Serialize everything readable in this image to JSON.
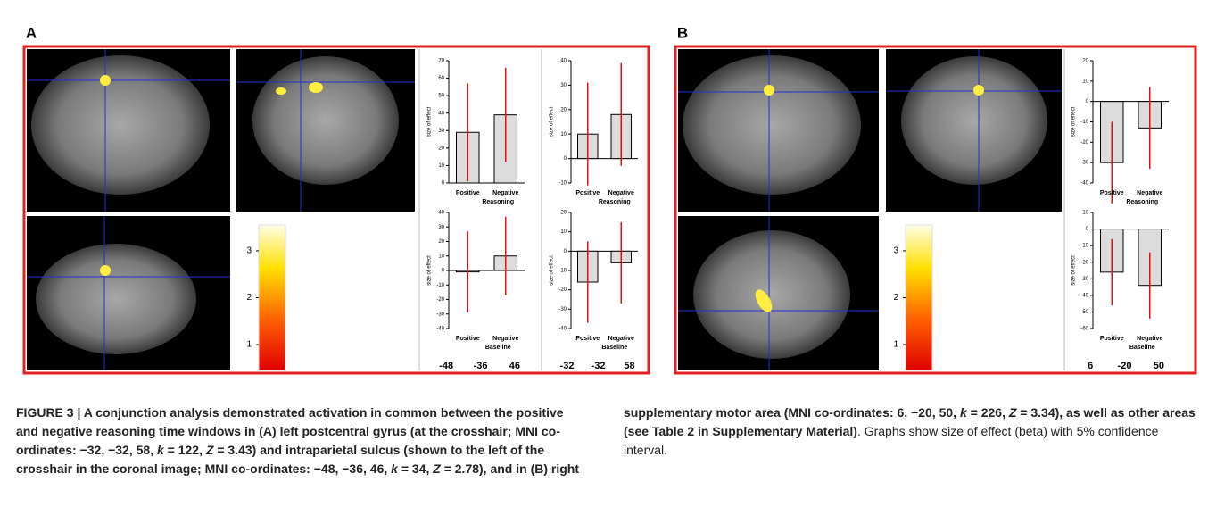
{
  "panels": [
    {
      "label": "A",
      "colorbar": {
        "range": [
          0.45,
          3.55
        ],
        "ticks": [
          1,
          2,
          3
        ]
      },
      "chart_columns": [
        {
          "charts": [
            {
              "type": "bar",
              "y_label": "size of effect",
              "categories": [
                "Positive",
                "Negative"
              ],
              "x_label": "Reasoning",
              "values": [
                29,
                39
              ],
              "errors": [
                28,
                27
              ],
              "ylim": [
                0,
                70
              ],
              "yticks": [
                0,
                10,
                20,
                30,
                40,
                50,
                60,
                70
              ]
            },
            {
              "type": "bar",
              "y_label": "size of effect",
              "categories": [
                "Positive",
                "Negative"
              ],
              "x_label": "Baseline",
              "values": [
                -1,
                10
              ],
              "errors": [
                28,
                27
              ],
              "ylim": [
                -40,
                40
              ],
              "yticks": [
                -40,
                -30,
                -20,
                -10,
                0,
                10,
                20,
                30,
                40
              ]
            }
          ],
          "coordinates": [
            -48,
            -36,
            46
          ]
        },
        {
          "charts": [
            {
              "type": "bar",
              "y_label": "size of effect",
              "categories": [
                "Positive",
                "Negative"
              ],
              "x_label": "Reasoning",
              "values": [
                10,
                18
              ],
              "errors": [
                21,
                21
              ],
              "ylim": [
                -10,
                40
              ],
              "yticks": [
                -10,
                0,
                10,
                20,
                30,
                40
              ]
            },
            {
              "type": "bar",
              "y_label": "size of effect",
              "categories": [
                "Positive",
                "Negative"
              ],
              "x_label": "Baseline",
              "values": [
                -16,
                -6
              ],
              "errors": [
                21,
                21
              ],
              "ylim": [
                -40,
                20
              ],
              "yticks": [
                -40,
                -30,
                -20,
                -10,
                0,
                10,
                20
              ]
            }
          ],
          "coordinates": [
            -32,
            -32,
            58
          ]
        }
      ]
    },
    {
      "label": "B",
      "colorbar": {
        "range": [
          0.45,
          3.55
        ],
        "ticks": [
          1,
          2,
          3
        ]
      },
      "chart_columns": [
        {
          "charts": [
            {
              "type": "bar",
              "y_label": "size of effect",
              "categories": [
                "Positive",
                "Negative"
              ],
              "x_label": "Reasoning",
              "values": [
                -30,
                -13
              ],
              "errors": [
                20,
                20
              ],
              "ylim": [
                -40,
                20
              ],
              "yticks": [
                -40,
                -30,
                -20,
                -10,
                0,
                10,
                20
              ]
            },
            {
              "type": "bar",
              "y_label": "size of effect",
              "categories": [
                "Positive",
                "Negative"
              ],
              "x_label": "Baseline",
              "values": [
                -26,
                -34
              ],
              "errors": [
                20,
                20
              ],
              "ylim": [
                -60,
                10
              ],
              "yticks": [
                -60,
                -50,
                -40,
                -30,
                -20,
                -10,
                0,
                10
              ]
            }
          ],
          "coordinates": [
            6,
            -20,
            50
          ]
        }
      ]
    }
  ],
  "caption": [
    {
      "text": "FIGURE 3 | A conjunction analysis demonstrated activation in common between the positive and negative reasoning time windows in (A) left postcentral gyrus (at the crosshair; MNI co-ordinates: −32, −32, 58, ",
      "style": "bold"
    },
    {
      "text": "k",
      "style": "bold-italic"
    },
    {
      "text": " = 122, ",
      "style": "bold"
    },
    {
      "text": "Z",
      "style": "bold-italic"
    },
    {
      "text": " = 3.43) and intraparietal sulcus (shown to the left of the crosshair in the coronal image; MNI co-ordinates: −48, −36, 46, ",
      "style": "bold"
    },
    {
      "text": "k",
      "style": "bold-italic"
    },
    {
      "text": " = 34, ",
      "style": "bold"
    },
    {
      "text": "Z",
      "style": "bold-italic"
    },
    {
      "text": " = 2.78), and in (B) right supplementary motor area (MNI co-ordinates: 6, −20, 50, ",
      "style": "bold"
    },
    {
      "text": "k",
      "style": "bold-italic"
    },
    {
      "text": " = 226, ",
      "style": "bold"
    },
    {
      "text": "Z",
      "style": "bold-italic"
    },
    {
      "text": " = 3.34), as well as other areas (see Table 2 in Supplementary Material)",
      "style": "bold"
    },
    {
      "text": ". Graphs show size of effect (beta) with 5% confidence interval.",
      "style": "normal"
    }
  ]
}
